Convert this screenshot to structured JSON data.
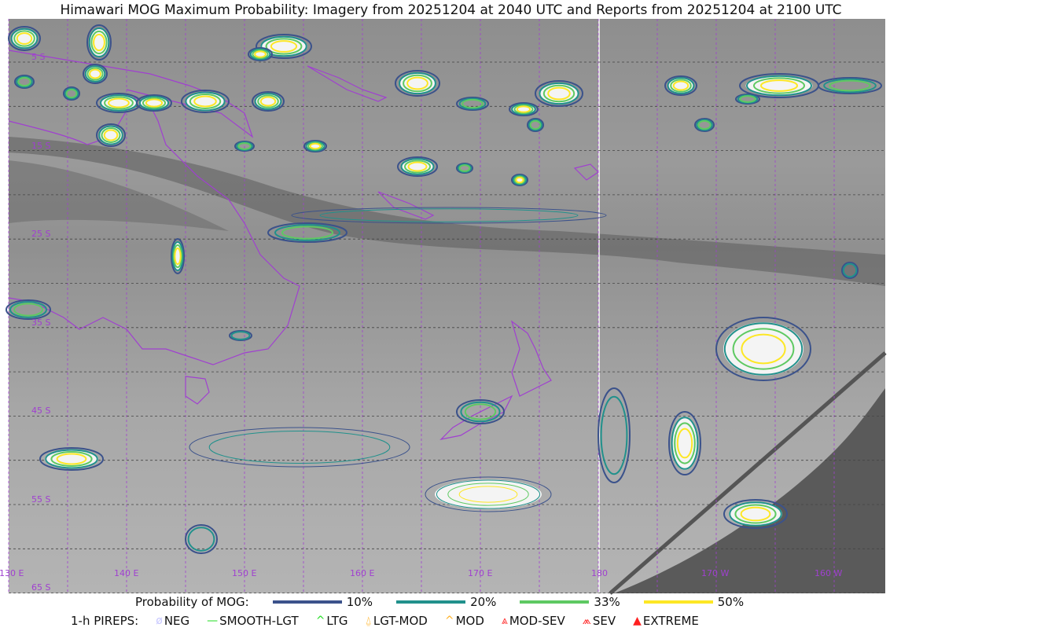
{
  "title": "Himawari MOG Maximum Probability: Imagery from 20251204 at 2040 UTC and Reports from 20251204 at 2100 UTC",
  "map": {
    "longitude_labels": [
      "130 E",
      "140 E",
      "150 E",
      "160 E",
      "170 E",
      "180",
      "170 W",
      "160 W"
    ],
    "latitude_labels": [
      "5 S",
      "15 S",
      "25 S",
      "35 S",
      "45 S",
      "55 S",
      "65 S"
    ],
    "grid": true,
    "coastline_color": "#a040d0",
    "no_data_color": "#5a5a5a"
  },
  "legend": {
    "probability_title": "Probability of MOG:",
    "probability": [
      {
        "label": "10%",
        "color": "#3b528b"
      },
      {
        "label": "20%",
        "color": "#21918c"
      },
      {
        "label": "33%",
        "color": "#5ec962"
      },
      {
        "label": "50%",
        "color": "#fde725"
      }
    ],
    "pireps_title": "1-h PIREPS:",
    "pireps": [
      {
        "label": "NEG",
        "icon": "neg-circle-slash-icon",
        "symbol": "ø",
        "color": "#c8c8ff"
      },
      {
        "label": "SMOOTH-LGT",
        "icon": "smooth-line-icon",
        "symbol": "—",
        "color": "#22dd22"
      },
      {
        "label": "LTG",
        "icon": "light-caret-icon",
        "symbol": "^",
        "color": "#22dd22"
      },
      {
        "label": "LGT-MOD",
        "icon": "light-moderate-icon",
        "symbol": "⍙",
        "color": "#ffb020"
      },
      {
        "label": "MOD",
        "icon": "moderate-caret-icon",
        "symbol": "^",
        "color": "#ffb020"
      },
      {
        "label": "MOD-SEV",
        "icon": "moderate-severe-icon",
        "symbol": "⩓",
        "color": "#ff3030"
      },
      {
        "label": "SEV",
        "icon": "severe-icon",
        "symbol": "⩕",
        "color": "#ff3030"
      },
      {
        "label": "EXTREME",
        "icon": "extreme-triangle-icon",
        "symbol": "▲",
        "color": "#ff2020"
      }
    ]
  }
}
